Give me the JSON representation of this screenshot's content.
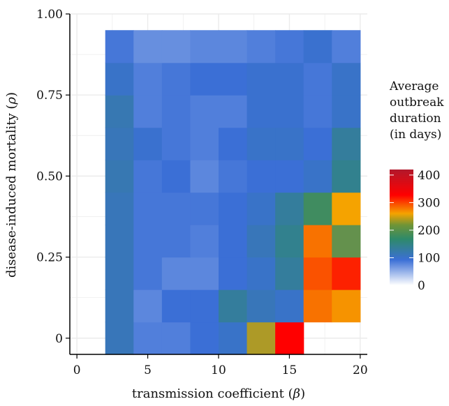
{
  "chart_data": {
    "type": "heatmap",
    "title": "",
    "xlabel": "transmission coefficient (",
    "xlabel_symbol": "β",
    "xlabel_close": ")",
    "ylabel": "disease-induced mortality (",
    "ylabel_symbol": "ρ",
    "ylabel_close": ")",
    "xlim": [
      -0.5,
      20.5
    ],
    "ylim": [
      -0.05,
      1.0
    ],
    "x_ticks": [
      0,
      5,
      10,
      15,
      20
    ],
    "x_tick_labels": [
      "0",
      "5",
      "10",
      "15",
      "20"
    ],
    "y_ticks": [
      0,
      0.25,
      0.5,
      0.75,
      1.0
    ],
    "y_tick_labels": [
      "0",
      "0.25",
      "0.50",
      "0.75",
      "1.00"
    ],
    "grid": true,
    "x": [
      3,
      5,
      7,
      9,
      11,
      13,
      15,
      17,
      19
    ],
    "y": [
      0,
      0.1,
      0.2,
      0.3,
      0.4,
      0.5,
      0.6,
      0.7,
      0.8,
      0.9
    ],
    "z": [
      [
        110,
        80,
        80,
        90,
        100,
        200,
        320,
        null,
        null
      ],
      [
        110,
        75,
        90,
        90,
        130,
        110,
        100,
        250,
        230
      ],
      [
        110,
        85,
        75,
        75,
        90,
        100,
        130,
        270,
        300
      ],
      [
        110,
        85,
        85,
        80,
        90,
        110,
        140,
        250,
        180
      ],
      [
        110,
        85,
        85,
        85,
        90,
        100,
        130,
        170,
        220
      ],
      [
        115,
        85,
        90,
        75,
        85,
        90,
        90,
        100,
        140
      ],
      [
        110,
        95,
        85,
        80,
        90,
        100,
        100,
        90,
        130
      ],
      [
        115,
        80,
        85,
        80,
        80,
        95,
        95,
        85,
        100
      ],
      [
        100,
        80,
        85,
        90,
        90,
        95,
        95,
        85,
        100
      ],
      [
        85,
        70,
        70,
        75,
        75,
        80,
        85,
        95,
        80
      ]
    ],
    "legend": {
      "title_lines": [
        "Average",
        "outbreak",
        "duration",
        "(in days)"
      ],
      "ticks": [
        0,
        100,
        200,
        300,
        400
      ],
      "tick_labels": [
        "0",
        "100",
        "200",
        "300",
        "400"
      ],
      "range": [
        0,
        420
      ],
      "placement": "right"
    },
    "colors": {
      "scale": [
        "#ffffff",
        "#3b6fd6",
        "#2e8a6a",
        "#f5a300",
        "#ff0000",
        "#b2182b"
      ],
      "panel_background": "#ffffff",
      "grid": "#ebebeb",
      "axis": "#000000"
    }
  }
}
